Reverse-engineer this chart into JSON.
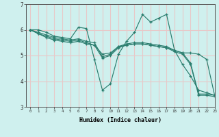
{
  "xlabel": "Humidex (Indice chaleur)",
  "background_color": "#cff0ee",
  "grid_color": "#e8c8c8",
  "line_color": "#2a7d6e",
  "xlim": [
    -0.5,
    23
  ],
  "ylim": [
    3,
    7
  ],
  "yticks": [
    3,
    4,
    5,
    6,
    7
  ],
  "xticks": [
    0,
    1,
    2,
    3,
    4,
    5,
    6,
    7,
    8,
    9,
    10,
    11,
    12,
    13,
    14,
    15,
    16,
    17,
    18,
    19,
    20,
    21,
    22,
    23
  ],
  "series": [
    [
      6.0,
      6.0,
      5.9,
      5.75,
      5.7,
      5.65,
      6.1,
      6.05,
      4.85,
      3.65,
      3.9,
      5.05,
      5.55,
      5.9,
      6.6,
      6.3,
      6.45,
      6.6,
      5.2,
      4.65,
      4.2,
      3.65,
      3.55,
      3.45
    ],
    [
      6.0,
      5.9,
      5.8,
      5.7,
      5.65,
      5.6,
      5.65,
      5.55,
      5.5,
      4.95,
      5.05,
      5.35,
      5.45,
      5.5,
      5.5,
      5.45,
      5.4,
      5.35,
      5.2,
      5.1,
      4.7,
      3.5,
      3.5,
      3.45
    ],
    [
      6.0,
      5.85,
      5.7,
      5.6,
      5.55,
      5.5,
      5.55,
      5.45,
      5.4,
      4.9,
      5.0,
      5.3,
      5.4,
      5.45,
      5.45,
      5.4,
      5.35,
      5.3,
      5.15,
      5.05,
      4.65,
      3.45,
      3.45,
      3.4
    ],
    [
      6.0,
      5.85,
      5.75,
      5.65,
      5.6,
      5.55,
      5.6,
      5.5,
      5.4,
      5.05,
      5.1,
      5.35,
      5.4,
      5.45,
      5.45,
      5.4,
      5.35,
      5.3,
      5.2,
      5.1,
      5.1,
      5.05,
      4.85,
      3.45
    ]
  ]
}
